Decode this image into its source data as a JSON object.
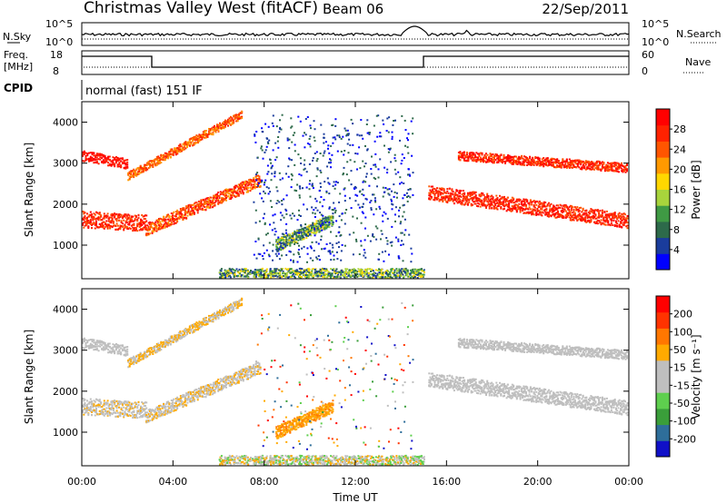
{
  "header": {
    "site": "Christmas Valley West (fitACF)",
    "beam": "Beam 06",
    "date": "22/Sep/2011"
  },
  "top_panels": {
    "nsky_label": "N.Sky",
    "nsearch_label": "N.Search",
    "nsky_ticks": [
      "10^5",
      "10^0"
    ],
    "nsky_right_ticks": [
      "10^5",
      "10^0"
    ],
    "freq_label_1": "Freq.",
    "freq_label_2": "[MHz]",
    "freq_ticks": [
      "18",
      "8"
    ],
    "nave_label": "Nave",
    "nave_ticks": [
      "60",
      "0"
    ],
    "cpid_label": "CPID",
    "cpid_value": "normal (fast) 151 IF"
  },
  "colors": {
    "power_scale": [
      "#0000ff",
      "#1a3c9c",
      "#2d6a4a",
      "#3f9a44",
      "#a8d43c",
      "#ffd700",
      "#ff9900",
      "#ff5500",
      "#ff2200",
      "#ff0000"
    ],
    "velocity_scale": [
      "#1010c8",
      "#2e6e9a",
      "#3a9e3a",
      "#5ecf4e",
      "#bfbfbf",
      "#bfbfbf",
      "#ffaa00",
      "#ff7700",
      "#ff3300",
      "#ff0000"
    ]
  },
  "chart_data": [
    {
      "type": "heatmap",
      "name": "power",
      "ylabel": "Slant Range [km]",
      "ylim": [
        180,
        4500
      ],
      "yticks": [
        1000,
        2000,
        3000,
        4000
      ],
      "xlim_hours": [
        0,
        24
      ],
      "colorbar_label": "Power [dB]",
      "colorbar_ticks": [
        "28",
        "24",
        "20",
        "16",
        "12",
        "8",
        "4"
      ],
      "colorbar_range": [
        0,
        30
      ]
    },
    {
      "type": "heatmap",
      "name": "velocity",
      "ylabel": "Slant Range [km]",
      "ylim": [
        180,
        4500
      ],
      "yticks": [
        1000,
        2000,
        3000,
        4000
      ],
      "xlim_hours": [
        0,
        24
      ],
      "xticks": [
        "00:00",
        "04:00",
        "08:00",
        "12:00",
        "16:00",
        "20:00",
        "00:00"
      ],
      "xlabel": "Time UT",
      "colorbar_label": "Velocity [m s⁻¹]",
      "colorbar_ticks": [
        "200",
        "100",
        "50",
        "15",
        "-15",
        "-50",
        "-100",
        "-200"
      ],
      "colorbar_range": [
        -250,
        250
      ]
    }
  ]
}
